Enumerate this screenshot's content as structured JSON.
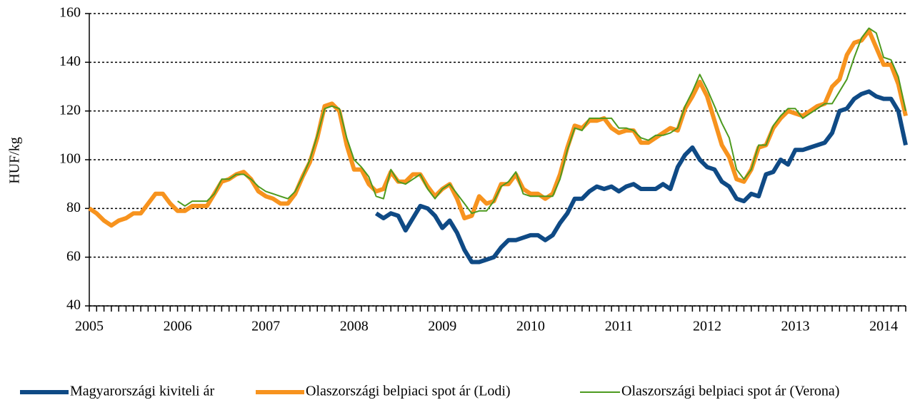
{
  "chart_data": {
    "type": "line",
    "y_label": "HUF/kg",
    "categories": [
      "2005",
      null,
      null,
      null,
      null,
      null,
      null,
      null,
      null,
      null,
      null,
      null,
      "2006",
      null,
      null,
      null,
      null,
      null,
      null,
      null,
      null,
      null,
      null,
      null,
      "2007",
      null,
      null,
      null,
      null,
      null,
      null,
      null,
      null,
      null,
      null,
      null,
      "2008",
      null,
      null,
      null,
      null,
      null,
      null,
      null,
      null,
      null,
      null,
      null,
      "2009",
      null,
      null,
      null,
      null,
      null,
      null,
      null,
      null,
      null,
      null,
      null,
      "2010",
      null,
      null,
      null,
      null,
      null,
      null,
      null,
      null,
      null,
      null,
      null,
      "2011",
      null,
      null,
      null,
      null,
      null,
      null,
      null,
      null,
      null,
      null,
      null,
      "2012",
      null,
      null,
      null,
      null,
      null,
      null,
      null,
      null,
      null,
      null,
      null,
      "2013",
      null,
      null,
      null,
      null,
      null,
      null,
      null,
      null,
      null,
      null,
      null,
      "2014",
      null,
      null,
      null
    ],
    "series": [
      {
        "name": "Magyarországi kiviteli ár",
        "color": "#0f4a85",
        "width": 6,
        "values": [
          null,
          null,
          null,
          null,
          null,
          null,
          null,
          null,
          null,
          null,
          null,
          null,
          null,
          null,
          null,
          null,
          null,
          null,
          null,
          null,
          null,
          null,
          null,
          null,
          null,
          null,
          null,
          null,
          null,
          null,
          null,
          null,
          null,
          null,
          null,
          null,
          null,
          null,
          null,
          78,
          76,
          78,
          77,
          71,
          76,
          81,
          80,
          77,
          72,
          75,
          70,
          63,
          58,
          58,
          59,
          60,
          64,
          67,
          67,
          68,
          69,
          69,
          67,
          69,
          74,
          78,
          84,
          84,
          87,
          89,
          88,
          89,
          87,
          89,
          90,
          88,
          88,
          88,
          90,
          88,
          97,
          102,
          105,
          100,
          97,
          96,
          91,
          89,
          84,
          83,
          86,
          85,
          94,
          95,
          100,
          98,
          104,
          104,
          105,
          106,
          107,
          111,
          120,
          121,
          125,
          127,
          128,
          126,
          125,
          125,
          120,
          106
        ]
      },
      {
        "name": "Olaszországi belpiaci spot ár (Lodi)",
        "color": "#f7931e",
        "width": 6,
        "values": [
          80,
          78,
          75,
          73,
          75,
          76,
          78,
          78,
          82,
          86,
          86,
          82,
          79,
          79,
          81,
          81,
          81,
          86,
          91,
          92,
          94,
          95,
          92,
          87,
          85,
          84,
          82,
          82,
          86,
          93,
          99,
          109,
          122,
          123,
          120,
          106,
          96,
          96,
          90,
          87,
          88,
          95,
          91,
          91,
          94,
          94,
          89,
          85,
          88,
          90,
          84,
          76,
          77,
          85,
          82,
          83,
          90,
          90,
          94,
          88,
          86,
          86,
          84,
          86,
          94,
          105,
          114,
          113,
          116,
          116,
          117,
          113,
          111,
          112,
          112,
          107,
          107,
          109,
          111,
          113,
          112,
          121,
          126,
          132,
          126,
          116,
          106,
          101,
          92,
          91,
          96,
          105,
          106,
          113,
          117,
          120,
          119,
          118,
          120,
          122,
          123,
          130,
          133,
          143,
          148,
          149,
          153,
          146,
          139,
          139,
          131,
          118
        ]
      },
      {
        "name": "Olaszországi belpiaci spot ár (Verona)",
        "color": "#4d9a1f",
        "width": 2,
        "values": [
          null,
          null,
          null,
          null,
          null,
          null,
          null,
          null,
          null,
          null,
          null,
          null,
          83,
          81,
          83,
          83,
          83,
          86,
          92,
          92,
          94,
          94,
          92,
          89,
          87,
          86,
          85,
          84,
          87,
          93,
          100,
          110,
          121,
          122,
          121,
          109,
          100,
          97,
          93,
          85,
          84,
          96,
          91,
          90,
          92,
          94,
          88,
          84,
          88,
          90,
          86,
          82,
          78,
          79,
          79,
          83,
          89,
          91,
          95,
          86,
          85,
          85,
          85,
          85,
          92,
          104,
          113,
          112,
          117,
          117,
          117,
          117,
          113,
          113,
          112,
          109,
          108,
          110,
          110,
          111,
          113,
          122,
          128,
          135,
          129,
          122,
          115,
          109,
          96,
          92,
          96,
          106,
          106,
          114,
          118,
          121,
          121,
          117,
          119,
          121,
          123,
          123,
          128,
          133,
          142,
          150,
          154,
          152,
          142,
          141,
          134,
          120
        ]
      }
    ],
    "ylim": [
      40,
      160
    ],
    "yticks": [
      40,
      60,
      80,
      100,
      120,
      140,
      160
    ],
    "grid": true,
    "legend": "bottom"
  }
}
